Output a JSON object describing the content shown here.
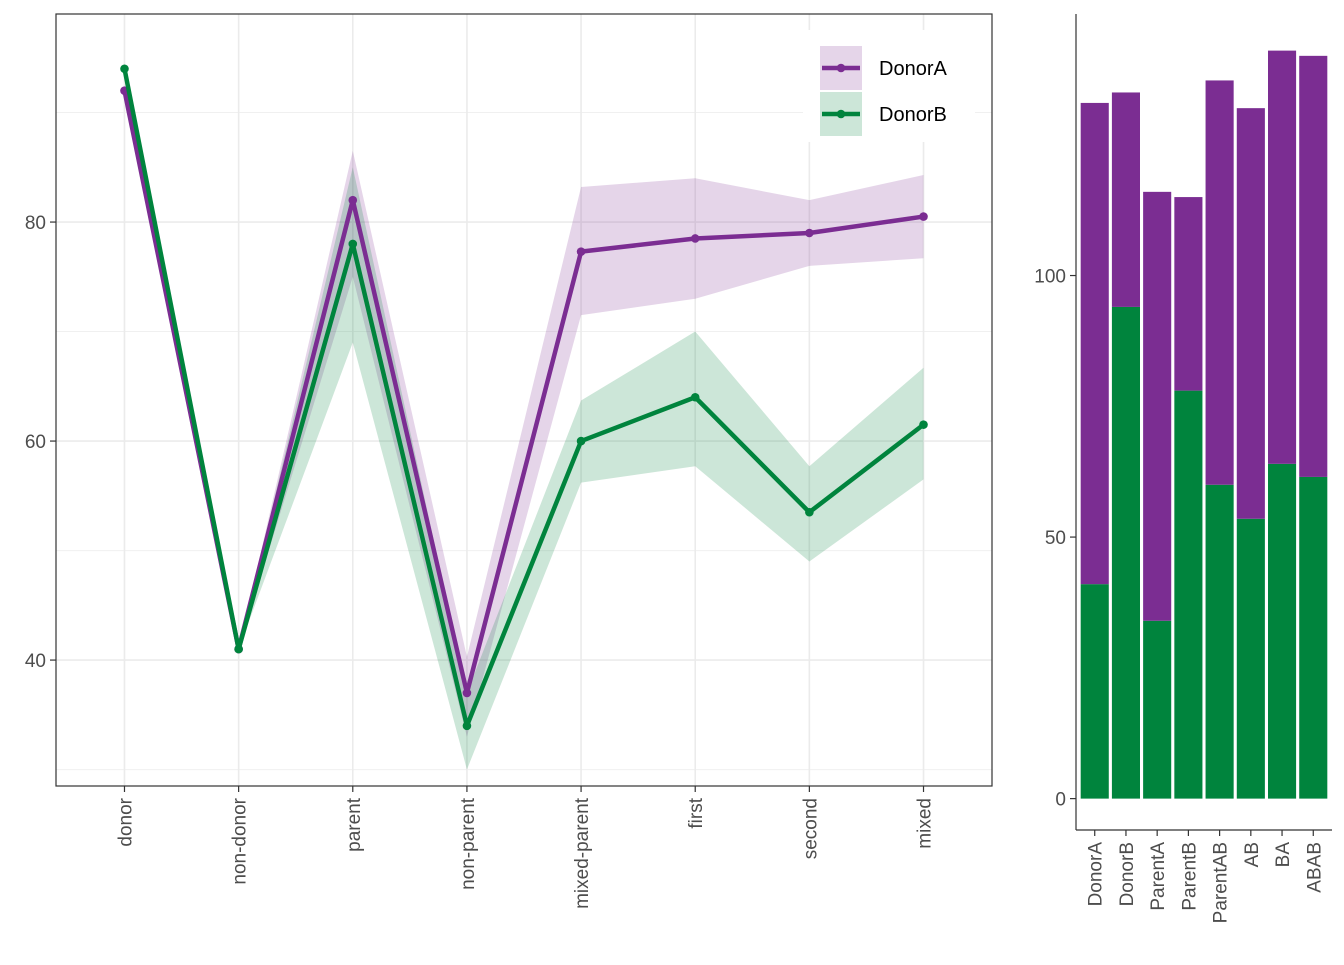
{
  "chart_data": [
    {
      "type": "line",
      "categories": [
        "donor",
        "non-donor",
        "parent",
        "non-parent",
        "mixed-parent",
        "first",
        "second",
        "mixed"
      ],
      "ylim": [
        28.5,
        99
      ],
      "yticks": [
        40,
        60,
        80
      ],
      "grid": true,
      "legend_position": "top-right",
      "series": [
        {
          "name": "DonorA",
          "color": "#7b2d92",
          "values": [
            92,
            41,
            82,
            37,
            77.3,
            78.5,
            79,
            80.5
          ],
          "ribbon_low": [
            92,
            41,
            75,
            33,
            71.5,
            73,
            76,
            76.7
          ],
          "ribbon_high": [
            92,
            41,
            86.5,
            40.3,
            83.2,
            84,
            82,
            84.3
          ]
        },
        {
          "name": "DonorB",
          "color": "#00843d",
          "values": [
            94,
            41,
            78,
            34,
            60,
            64,
            53.5,
            61.5
          ],
          "ribbon_low": [
            94,
            41,
            69,
            30,
            56.2,
            57.7,
            49,
            56.5
          ],
          "ribbon_high": [
            94,
            41,
            85,
            37,
            63.7,
            70,
            57.7,
            66.7
          ]
        }
      ]
    },
    {
      "type": "bar",
      "stacked": true,
      "categories": [
        "DonorA",
        "DonorB",
        "ParentA",
        "ParentB",
        "ParentAB",
        "AB",
        "BA",
        "ABAB"
      ],
      "ylim": [
        -6,
        150
      ],
      "yticks": [
        0,
        50,
        100
      ],
      "grid": false,
      "series": [
        {
          "color": "#00843d",
          "values": [
            41,
            94,
            34,
            78,
            60,
            53.5,
            64,
            61.5
          ]
        },
        {
          "color": "#7b2d92",
          "values": [
            92,
            41,
            82,
            37,
            77.3,
            78.5,
            79,
            80.5
          ]
        }
      ]
    }
  ]
}
